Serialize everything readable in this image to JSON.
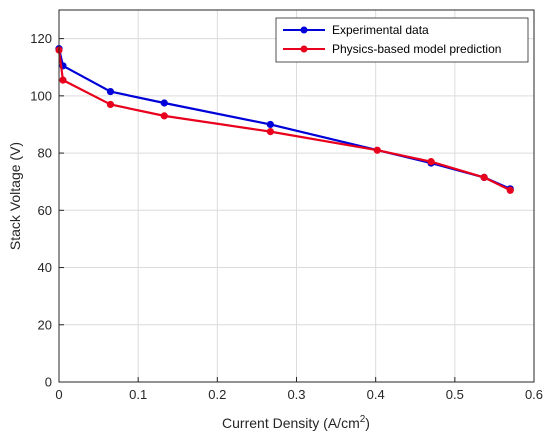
{
  "chart_data": {
    "type": "line",
    "xlabel_main": "Current Density (A/cm",
    "xlabel_sup": "2",
    "xlabel_end": ")",
    "ylabel": "Stack Voltage (V)",
    "xlim": [
      0,
      0.6
    ],
    "ylim": [
      0,
      130
    ],
    "xticks": [
      0,
      0.1,
      0.2,
      0.3,
      0.4,
      0.5,
      0.6
    ],
    "xtick_labels": [
      "0",
      "0.1",
      "0.2",
      "0.3",
      "0.4",
      "0.5",
      "0.6"
    ],
    "yticks": [
      0,
      20,
      40,
      60,
      80,
      100,
      120
    ],
    "ytick_labels": [
      "0",
      "20",
      "40",
      "60",
      "80",
      "100",
      "120"
    ],
    "grid": true,
    "legend_position": "top-right",
    "series": [
      {
        "name": "Experimental data",
        "color": "#0000d8",
        "x": [
          0,
          0.005,
          0.065,
          0.133,
          0.267,
          0.47,
          0.537,
          0.57
        ],
        "y": [
          116.5,
          110.5,
          101.5,
          97.5,
          90,
          76.5,
          71.5,
          67.5
        ]
      },
      {
        "name": "Physics-based model prediction",
        "color": "#e8001c",
        "x": [
          0,
          0.005,
          0.065,
          0.133,
          0.267,
          0.402,
          0.47,
          0.537,
          0.57
        ],
        "y": [
          116,
          105.5,
          97,
          93,
          87.5,
          81,
          77,
          71.5,
          67
        ]
      }
    ]
  }
}
